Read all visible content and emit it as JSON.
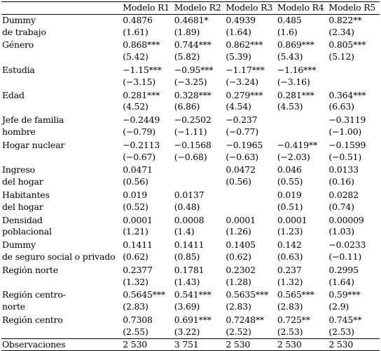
{
  "header": [
    "",
    "Modelo R1",
    "Modelo R2",
    "Modelo R3",
    "Modelo R4",
    "Modelo R5"
  ],
  "rows": [
    [
      "Dummy",
      "0.4876",
      "0.4681*",
      "0.4939",
      "0.485",
      "0.822**"
    ],
    [
      "de trabajo",
      "(1.61)",
      "(1.89)",
      "(1.64)",
      "(1.6)",
      "(2.34)"
    ],
    [
      "Género",
      "0.868***",
      "0.744***",
      "0.862***",
      "0.869***",
      "0.805***"
    ],
    [
      "",
      "(5.42)",
      "(5.82)",
      "(5.39)",
      "(5.43)",
      "(5.12)"
    ],
    [
      "Estudia",
      "−1.15***",
      "−0.95***",
      "−1.17***",
      "−1.16***",
      ""
    ],
    [
      "",
      "(−3.15)",
      "(−3.25)",
      "(−3.24)",
      "(−3.16)",
      ""
    ],
    [
      "Edad",
      "0.281***",
      "0.328***",
      "0.279***",
      "0.281***",
      "0.364***"
    ],
    [
      "",
      "(4.52)",
      "(6.86)",
      "(4.54)",
      "(4.53)",
      "(6.63)"
    ],
    [
      "Jefe de familia",
      "−0.2449",
      "−0.2502",
      "−0.237",
      "",
      "−0.3119"
    ],
    [
      "hombre",
      "(−0.79)",
      "(−1.11)",
      "(−0.77)",
      "",
      "(−1.00)"
    ],
    [
      "Hogar nuclear",
      "−0.2113",
      "−0.1568",
      "−0.1965",
      "−0.419**",
      "−0.1599"
    ],
    [
      "",
      "(−0.67)",
      "(−0.68)",
      "(−0.63)",
      "(−2.03)",
      "(−0.51)"
    ],
    [
      "Ingreso",
      "0.0471",
      "",
      "0.0472",
      "0.046",
      "0.0133"
    ],
    [
      "del hogar",
      "(0.56)",
      "",
      "(0.56)",
      "(0.55)",
      "(0.16)"
    ],
    [
      "Habitantes",
      "0.019",
      "0.0137",
      "",
      "0.019",
      "0.0282"
    ],
    [
      "del hogar",
      "(0.52)",
      "(0.48)",
      "",
      "(0.51)",
      "(0.74)"
    ],
    [
      "Densidad",
      "0.0001",
      "0.0008",
      "0.0001",
      "0.0001",
      "0.00009"
    ],
    [
      "poblacional",
      "(1.21)",
      "(1.4)",
      "(1.26)",
      "(1.23)",
      "(1.03)"
    ],
    [
      "Dummy",
      "0.1411",
      "0.1411",
      "0.1405",
      "0.142",
      "−0.0233"
    ],
    [
      "de seguro social o privado",
      "(0.62)",
      "(0.85)",
      "(0.62)",
      "(0.63)",
      "(−0.11)"
    ],
    [
      "Región norte",
      "0.2377",
      "0.1781",
      "0.2302",
      "0.237",
      "0.2995"
    ],
    [
      "",
      "(1.32)",
      "(1.43)",
      "(1.28)",
      "(1.32)",
      "(1.64)"
    ],
    [
      "Región centro-",
      "0.5645***",
      "0.541***",
      "0.5635***",
      "0.565***",
      "0.59***"
    ],
    [
      "norte",
      "(2.83)",
      "(3.69)",
      "(2.83)",
      "(2.83)",
      "(2.9)"
    ],
    [
      "Región centro",
      "0.7308",
      "0.691***",
      "0.7248**",
      "0.725**",
      "0.745**"
    ],
    [
      "",
      "(2.55)",
      "(3.22)",
      "(2.52)",
      "(2.53)",
      "(2.53)"
    ]
  ],
  "footer": [
    "Observaciones",
    "2 530",
    "3 751",
    "2 530",
    "2 530",
    "2 530"
  ]
}
